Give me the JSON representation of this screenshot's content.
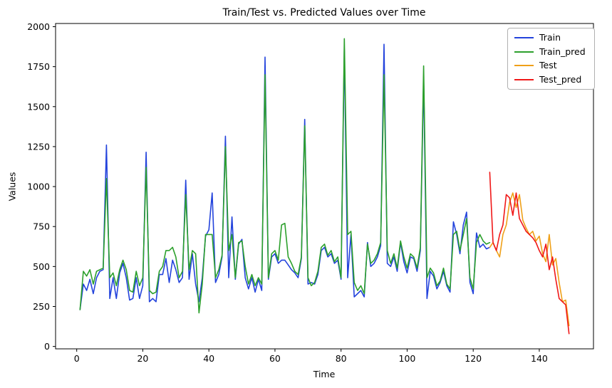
{
  "title": "Train/Test vs. Predicted Values over Time",
  "chart_data": {
    "type": "line",
    "title": "Train/Test vs. Predicted Values over Time",
    "xlabel": "Time",
    "ylabel": "Values",
    "xlim": [
      -6.4,
      156.4
    ],
    "ylim": [
      -15,
      2020
    ],
    "xticks": [
      0,
      20,
      40,
      60,
      80,
      100,
      120,
      140
    ],
    "yticks": [
      0,
      250,
      500,
      750,
      1000,
      1250,
      1500,
      1750,
      2000
    ],
    "grid": false,
    "legend_position": "upper right",
    "series": [
      {
        "name": "Train",
        "color": "#2343dc",
        "x_start": 1,
        "values": [
          230,
          390,
          350,
          420,
          330,
          430,
          470,
          480,
          1260,
          300,
          430,
          300,
          460,
          520,
          430,
          290,
          300,
          430,
          300,
          380,
          1215,
          280,
          300,
          280,
          450,
          450,
          550,
          400,
          540,
          480,
          400,
          430,
          1040,
          420,
          580,
          390,
          280,
          430,
          690,
          730,
          960,
          400,
          450,
          560,
          1315,
          430,
          810,
          420,
          640,
          670,
          430,
          360,
          430,
          340,
          420,
          350,
          1810,
          420,
          560,
          580,
          520,
          540,
          540,
          510,
          480,
          460,
          430,
          550,
          1420,
          390,
          400,
          390,
          450,
          600,
          620,
          560,
          580,
          520,
          540,
          420,
          1860,
          430,
          700,
          310,
          330,
          350,
          310,
          650,
          500,
          520,
          560,
          630,
          1890,
          520,
          500,
          560,
          470,
          650,
          530,
          460,
          560,
          550,
          470,
          600,
          1680,
          300,
          470,
          440,
          360,
          400,
          470,
          380,
          340,
          780,
          700,
          580,
          760,
          840,
          400,
          330,
          710,
          620,
          640,
          610,
          620
        ]
      },
      {
        "name": "Train_pred",
        "color": "#2ca02c",
        "x_start": 1,
        "values": [
          230,
          470,
          440,
          480,
          390,
          470,
          480,
          490,
          1050,
          430,
          460,
          380,
          480,
          540,
          480,
          350,
          340,
          470,
          380,
          430,
          1120,
          350,
          330,
          340,
          470,
          500,
          600,
          600,
          620,
          560,
          430,
          470,
          950,
          480,
          600,
          580,
          210,
          390,
          700,
          700,
          700,
          430,
          480,
          570,
          1250,
          600,
          700,
          430,
          650,
          660,
          500,
          390,
          450,
          380,
          430,
          390,
          1700,
          430,
          580,
          600,
          540,
          760,
          770,
          560,
          520,
          470,
          450,
          560,
          1380,
          430,
          380,
          400,
          470,
          620,
          640,
          570,
          600,
          530,
          560,
          430,
          1925,
          700,
          720,
          400,
          350,
          380,
          330,
          640,
          520,
          540,
          580,
          650,
          1700,
          600,
          520,
          580,
          490,
          660,
          560,
          490,
          580,
          560,
          490,
          620,
          1755,
          430,
          490,
          460,
          380,
          410,
          490,
          390,
          360,
          700,
          720,
          600,
          700,
          800,
          430,
          360,
          650,
          700,
          660,
          640,
          650
        ]
      },
      {
        "name": "Test",
        "color": "#efa018",
        "x_start": 125,
        "values": [
          620,
          650,
          600,
          560,
          700,
          760,
          900,
          960,
          870,
          950,
          790,
          740,
          700,
          720,
          660,
          690,
          580,
          530,
          700,
          510,
          550,
          400,
          280,
          290,
          130
        ]
      },
      {
        "name": "Test_pred",
        "color": "#f01818",
        "x_start": 125,
        "values": [
          1090,
          650,
          600,
          700,
          760,
          950,
          930,
          820,
          960,
          800,
          760,
          720,
          700,
          680,
          650,
          600,
          560,
          640,
          480,
          560,
          420,
          300,
          280,
          260,
          80
        ]
      }
    ]
  }
}
